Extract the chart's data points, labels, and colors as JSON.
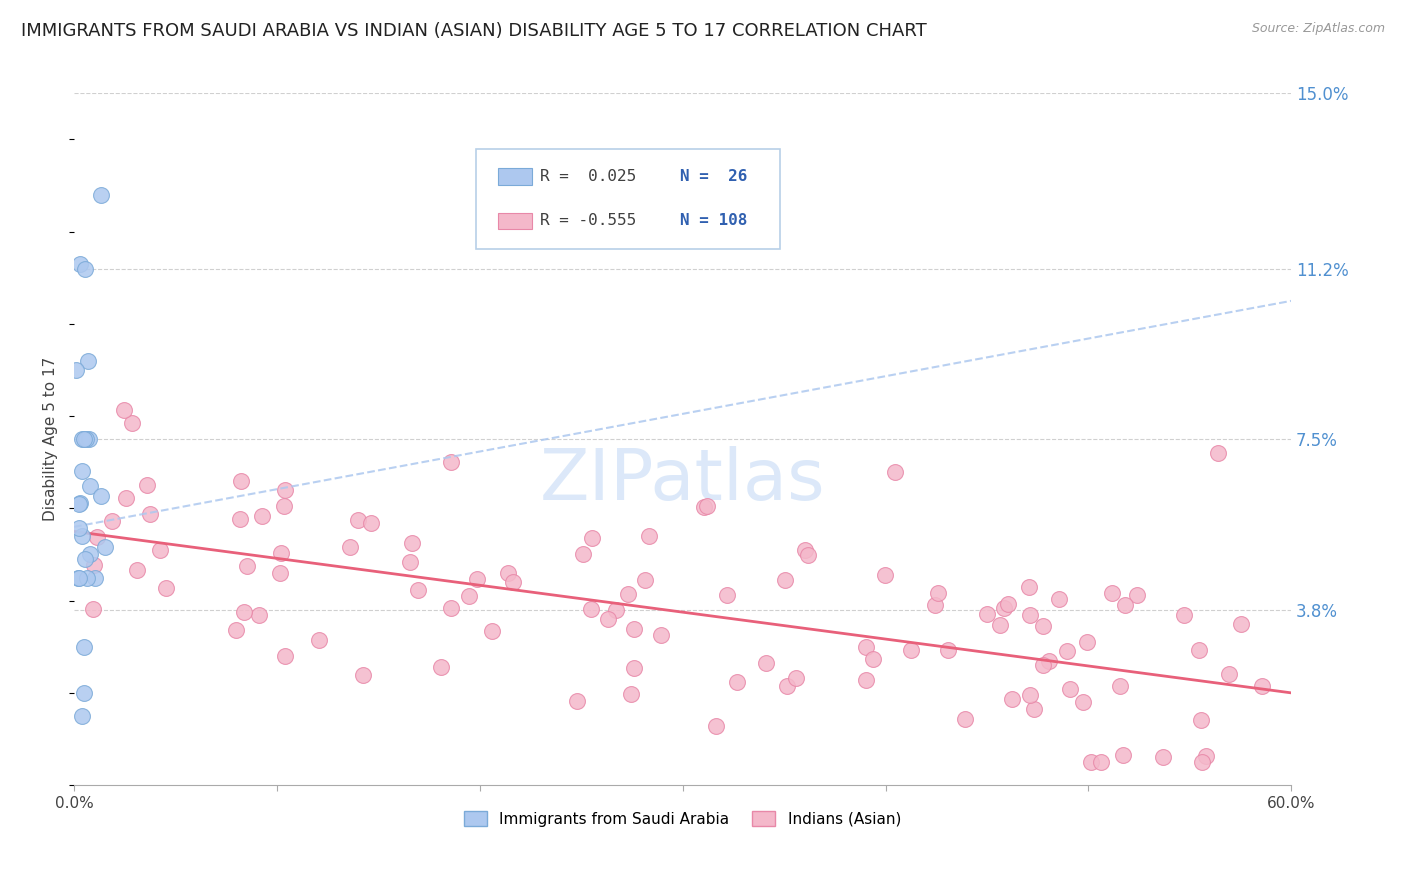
{
  "title": "IMMIGRANTS FROM SAUDI ARABIA VS INDIAN (ASIAN) DISABILITY AGE 5 TO 17 CORRELATION CHART",
  "source": "Source: ZipAtlas.com",
  "ylabel": "Disability Age 5 to 17",
  "xlim": [
    0.0,
    0.6
  ],
  "ylim": [
    0.0,
    0.15
  ],
  "yticks": [
    0.038,
    0.075,
    0.112,
    0.15
  ],
  "ytick_labels": [
    "3.8%",
    "7.5%",
    "11.2%",
    "15.0%"
  ],
  "xticks": [
    0.0,
    0.1,
    0.2,
    0.3,
    0.4,
    0.5,
    0.6
  ],
  "xtick_labels": [
    "0.0%",
    "",
    "",
    "",
    "",
    "",
    "60.0%"
  ],
  "saudi_color": "#adc8ef",
  "saudi_edge_color": "#7baad8",
  "indian_color": "#f4b8ca",
  "indian_edge_color": "#e888a8",
  "trend_blue_color": "#adc8ef",
  "trend_pink_color": "#e8607a",
  "background_color": "#ffffff",
  "grid_color": "#d0d0d0",
  "right_axis_color": "#5090d0",
  "title_fontsize": 13,
  "axis_label_fontsize": 11,
  "tick_fontsize": 11,
  "saudi_R": 0.025,
  "saudi_N": 26,
  "indian_R": -0.555,
  "indian_N": 108,
  "legend_r1": "R =  0.025",
  "legend_n1": "N =  26",
  "legend_r2": "R = -0.555",
  "legend_n2": "N = 108",
  "watermark_text": "ZIPatlas",
  "watermark_color": "#c5daf5",
  "legend_box_color": "#b8d0e8",
  "legend_text_color": "#404040",
  "legend_num_color": "#3060b0"
}
